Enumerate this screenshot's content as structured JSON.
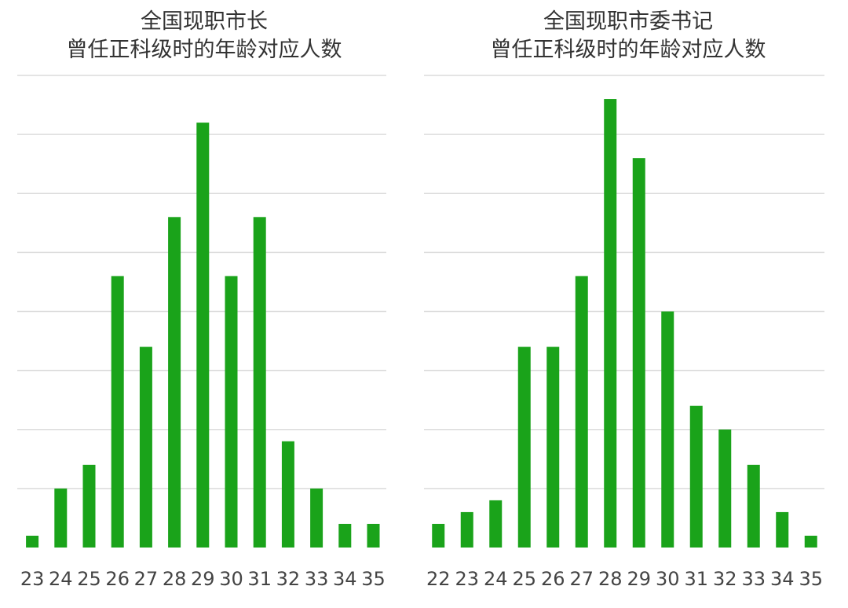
{
  "colors": {
    "bar": "#1aa31a",
    "grid": "#dcdcdc"
  },
  "chart_data": [
    {
      "type": "bar",
      "title_lines": [
        "全国现职市长",
        "曾任正科级时的年龄对应人数"
      ],
      "categories": [
        "23",
        "24",
        "25",
        "26",
        "27",
        "28",
        "29",
        "30",
        "31",
        "32",
        "33",
        "34",
        "35"
      ],
      "values": [
        1,
        5,
        7,
        23,
        17,
        28,
        36,
        23,
        28,
        9,
        5,
        2,
        2
      ],
      "ylim": [
        0,
        40
      ],
      "grid": true,
      "xlabel": "",
      "ylabel": ""
    },
    {
      "type": "bar",
      "title_lines": [
        "全国现职市委书记",
        "曾任正科级时的年龄对应人数"
      ],
      "categories": [
        "22",
        "23",
        "24",
        "25",
        "26",
        "27",
        "28",
        "29",
        "30",
        "31",
        "32",
        "33",
        "34",
        "35"
      ],
      "values": [
        2,
        3,
        4,
        17,
        17,
        23,
        38,
        33,
        20,
        12,
        10,
        7,
        3,
        1
      ],
      "ylim": [
        0,
        40
      ],
      "grid": true,
      "xlabel": "",
      "ylabel": ""
    }
  ]
}
